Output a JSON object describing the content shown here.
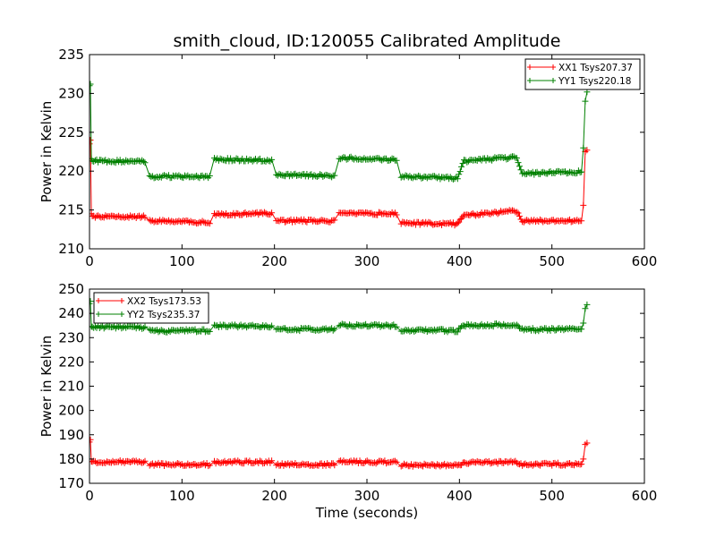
{
  "chart_data": [
    {
      "type": "line",
      "title": "smith_cloud, ID:120055 Calibrated Amplitude",
      "xlabel": "",
      "ylabel": "Power in Kelvin",
      "xlim": [
        0,
        600
      ],
      "ylim": [
        210,
        235
      ],
      "xticks": [
        0,
        100,
        200,
        300,
        400,
        500,
        600
      ],
      "yticks": [
        210,
        215,
        220,
        225,
        230,
        235
      ],
      "legend_position": "top-right",
      "grid": false,
      "series": [
        {
          "name": "XX1 Tsys207.37",
          "color": "#ff0000",
          "marker": "plus",
          "points": [
            [
              0,
              223.5
            ],
            [
              1,
              224
            ],
            [
              2,
              214.5
            ],
            [
              3,
              214.2
            ],
            [
              60,
              214.1
            ],
            [
              65,
              213.6
            ],
            [
              130,
              213.4
            ],
            [
              135,
              214.4
            ],
            [
              197,
              214.6
            ],
            [
              202,
              213.6
            ],
            [
              265,
              213.6
            ],
            [
              270,
              214.6
            ],
            [
              332,
              214.5
            ],
            [
              337,
              213.3
            ],
            [
              398,
              213.2
            ],
            [
              405,
              214.3
            ],
            [
              462,
              214.9
            ],
            [
              468,
              213.6
            ],
            [
              532,
              213.6
            ],
            [
              534,
              215.6
            ],
            [
              536,
              222.5
            ],
            [
              538,
              222.7
            ]
          ]
        },
        {
          "name": "YY1 Tsys220.18",
          "color": "#008000",
          "marker": "plus",
          "points": [
            [
              0,
              231
            ],
            [
              1,
              231.2
            ],
            [
              2,
              221.6
            ],
            [
              3,
              221.3
            ],
            [
              60,
              221.2
            ],
            [
              65,
              219.3
            ],
            [
              130,
              219.3
            ],
            [
              135,
              221.5
            ],
            [
              197,
              221.4
            ],
            [
              202,
              219.5
            ],
            [
              265,
              219.4
            ],
            [
              270,
              221.7
            ],
            [
              332,
              221.5
            ],
            [
              337,
              219.3
            ],
            [
              398,
              219.1
            ],
            [
              405,
              221.3
            ],
            [
              462,
              221.8
            ],
            [
              468,
              219.7
            ],
            [
              532,
              219.9
            ],
            [
              534,
              223
            ],
            [
              536,
              229
            ],
            [
              538,
              230.2
            ]
          ]
        }
      ]
    },
    {
      "type": "line",
      "title": "",
      "xlabel": "Time (seconds)",
      "ylabel": "Power in Kelvin",
      "xlim": [
        0,
        600
      ],
      "ylim": [
        170,
        250
      ],
      "xticks": [
        0,
        100,
        200,
        300,
        400,
        500,
        600
      ],
      "yticks": [
        170,
        180,
        190,
        200,
        210,
        220,
        230,
        240,
        250
      ],
      "legend_position": "top-left",
      "grid": false,
      "series": [
        {
          "name": "XX2 Tsys173.53",
          "color": "#ff0000",
          "marker": "plus",
          "points": [
            [
              0,
              187
            ],
            [
              1,
              188
            ],
            [
              2,
              179
            ],
            [
              3,
              178.9
            ],
            [
              60,
              178.9
            ],
            [
              65,
              177.8
            ],
            [
              130,
              177.7
            ],
            [
              135,
              178.7
            ],
            [
              197,
              178.8
            ],
            [
              202,
              177.7
            ],
            [
              265,
              177.8
            ],
            [
              270,
              178.8
            ],
            [
              332,
              178.7
            ],
            [
              337,
              177.5
            ],
            [
              398,
              177.4
            ],
            [
              405,
              178.5
            ],
            [
              462,
              178.7
            ],
            [
              468,
              177.8
            ],
            [
              532,
              177.9
            ],
            [
              534,
              180
            ],
            [
              536,
              186
            ],
            [
              538,
              186.6
            ]
          ]
        },
        {
          "name": "YY2 Tsys235.37",
          "color": "#008000",
          "marker": "plus",
          "points": [
            [
              0,
              244
            ],
            [
              1,
              245
            ],
            [
              2,
              234.6
            ],
            [
              3,
              234.4
            ],
            [
              60,
              234.2
            ],
            [
              65,
              232.8
            ],
            [
              130,
              232.9
            ],
            [
              135,
              234.9
            ],
            [
              197,
              234.7
            ],
            [
              202,
              233.3
            ],
            [
              265,
              233.5
            ],
            [
              270,
              235.1
            ],
            [
              332,
              234.9
            ],
            [
              337,
              233.1
            ],
            [
              398,
              232.9
            ],
            [
              405,
              234.9
            ],
            [
              462,
              235.4
            ],
            [
              468,
              233.3
            ],
            [
              532,
              233.5
            ],
            [
              534,
              236
            ],
            [
              536,
              242
            ],
            [
              538,
              243.6
            ]
          ]
        }
      ]
    }
  ]
}
